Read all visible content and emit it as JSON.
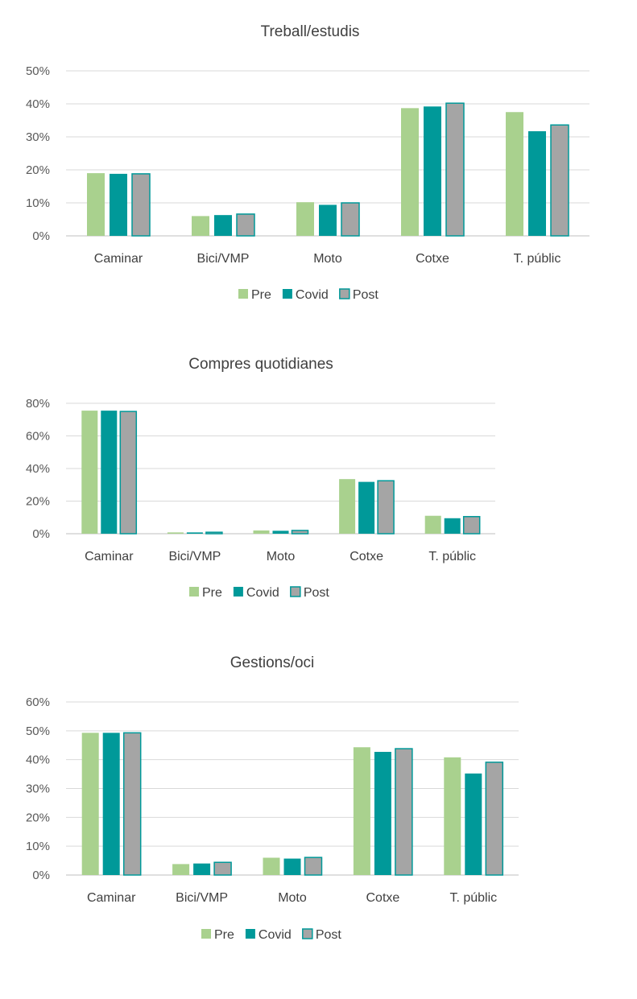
{
  "colors": {
    "Pre": "#a9d18e",
    "Covid": "#009999",
    "Post": "#a5a5a5",
    "post_stroke": "#009999"
  },
  "chart_data": [
    {
      "type": "bar",
      "title": "Treball/estudis",
      "categories": [
        "Caminar",
        "Bici/VMP",
        "Moto",
        "Cotxe",
        "T. públic"
      ],
      "ylim": [
        0,
        50
      ],
      "yticks": [
        "0%",
        "10%",
        "20%",
        "30%",
        "40%",
        "50%"
      ],
      "grid": true,
      "legend_position": "bottom",
      "series": [
        {
          "name": "Pre",
          "values": [
            19.0,
            6.0,
            10.2,
            38.7,
            37.5
          ]
        },
        {
          "name": "Covid",
          "values": [
            18.8,
            6.3,
            9.4,
            39.2,
            31.7
          ]
        },
        {
          "name": "Post",
          "values": [
            18.8,
            6.6,
            10.0,
            40.2,
            33.6
          ]
        }
      ]
    },
    {
      "type": "bar",
      "title": "Compres quotidianes",
      "categories": [
        "Caminar",
        "Bici/VMP",
        "Moto",
        "Cotxe",
        "T. públic"
      ],
      "ylim": [
        0,
        80
      ],
      "yticks": [
        "0%",
        "20%",
        "40%",
        "60%",
        "80%"
      ],
      "grid": true,
      "legend_position": "bottom",
      "series": [
        {
          "name": "Pre",
          "values": [
            75.5,
            0.8,
            2.0,
            33.5,
            11.0
          ]
        },
        {
          "name": "Covid",
          "values": [
            75.5,
            0.8,
            1.8,
            31.8,
            9.5
          ]
        },
        {
          "name": "Post",
          "values": [
            75.0,
            0.9,
            2.0,
            32.5,
            10.5
          ]
        }
      ]
    },
    {
      "type": "bar",
      "title": "Gestions/oci",
      "categories": [
        "Caminar",
        "Bici/VMP",
        "Moto",
        "Cotxe",
        "T. públic"
      ],
      "ylim": [
        0,
        60
      ],
      "yticks": [
        "0%",
        "10%",
        "20%",
        "30%",
        "40%",
        "50%",
        "60%"
      ],
      "grid": true,
      "legend_position": "bottom",
      "series": [
        {
          "name": "Pre",
          "values": [
            49.3,
            3.8,
            6.0,
            44.3,
            40.8
          ]
        },
        {
          "name": "Covid",
          "values": [
            49.3,
            4.0,
            5.7,
            42.7,
            35.2
          ]
        },
        {
          "name": "Post",
          "values": [
            49.3,
            4.4,
            6.1,
            43.8,
            39.1
          ]
        }
      ]
    }
  ]
}
